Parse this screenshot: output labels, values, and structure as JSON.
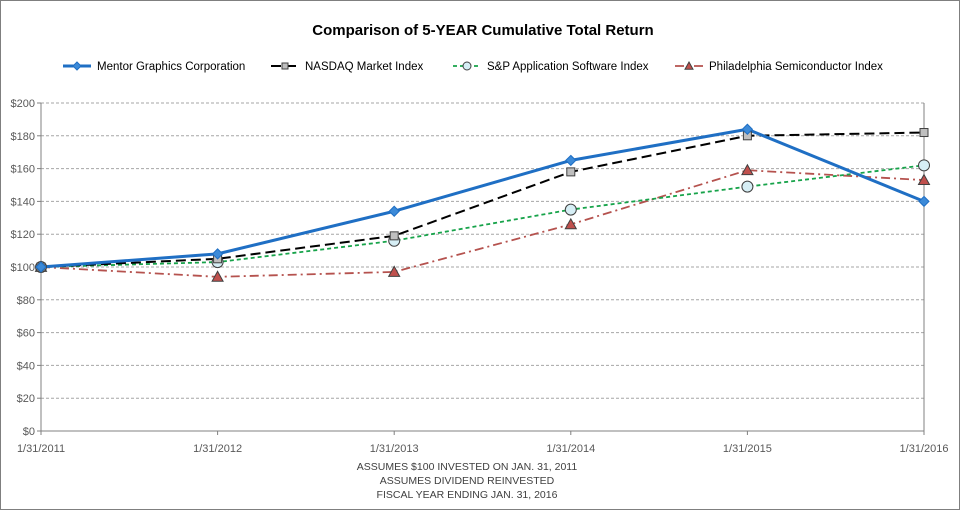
{
  "chart_data": {
    "type": "line",
    "title": "Comparison of 5-YEAR Cumulative Total Return",
    "categories": [
      "1/31/2011",
      "1/31/2012",
      "1/31/2013",
      "1/31/2014",
      "1/31/2015",
      "1/31/2016"
    ],
    "y_ticks": [
      "$0",
      "$20",
      "$40",
      "$60",
      "$80",
      "$100",
      "$120",
      "$140",
      "$160",
      "$180",
      "$200"
    ],
    "ylim": [
      0,
      200
    ],
    "y_step": 20,
    "grid": true,
    "legend_position": "top",
    "series": [
      {
        "name": "Mentor Graphics Corporation",
        "values": [
          100,
          108,
          134,
          165,
          184,
          140
        ],
        "color": "#1f6fc4",
        "marker": "diamond",
        "marker_fill": "#3c8ad8",
        "dash": "solid"
      },
      {
        "name": "NASDAQ Market Index",
        "values": [
          100,
          105,
          119,
          158,
          180,
          182
        ],
        "color": "#000000",
        "marker": "square",
        "marker_fill": "#bfbfbf",
        "dash": "long-dash"
      },
      {
        "name": "S&P Application Software Index",
        "values": [
          100,
          103,
          116,
          135,
          149,
          162
        ],
        "color": "#17a34a",
        "marker": "circle",
        "marker_fill": "#d6eef5",
        "dash": "short-dash"
      },
      {
        "name": "Philadelphia Semiconductor Index",
        "values": [
          100,
          94,
          97,
          126,
          159,
          153
        ],
        "color": "#b5524e",
        "marker": "triangle",
        "marker_fill": "#c0504d",
        "dash": "dash-dot"
      }
    ],
    "notes": [
      "ASSUMES $100 INVESTED ON JAN. 31, 2011",
      "ASSUMES DIVIDEND REINVESTED",
      "FISCAL YEAR ENDING JAN. 31, 2016"
    ]
  }
}
